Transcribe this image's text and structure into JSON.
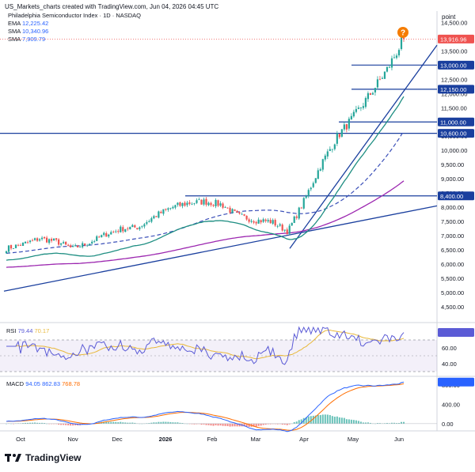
{
  "header": {
    "caption": "US_Markets_charts created with TradingView.com, Jun 04, 2026 04:45 UTC"
  },
  "logo": {
    "text": "TradingView"
  },
  "colors": {
    "ema": "#1e8e82",
    "sma_fast": "#3a4fb8",
    "sma_slow": "#9c27b0",
    "up": "#26a69a",
    "down": "#ef5350",
    "level": "#1a3f9e",
    "rsi": "#5b5bd6",
    "rsi_ma": "#e8b83a",
    "macd": "#2962ff",
    "signal": "#ff6d00"
  },
  "chart_data": [
    {
      "type": "candlestick",
      "title": "Philadelphia Semiconductor Index · 1D · NASDAQ",
      "price_axis_label": "point",
      "ylim": [
        4000,
        14900
      ],
      "y_ticks": [
        "14,500.00",
        "14,000.00",
        "13,500.00",
        "13,000.00",
        "12,500.00",
        "12,000.00",
        "11,500.00",
        "11,000.00",
        "10,500.00",
        "10,000.00",
        "9,500.00",
        "9,000.00",
        "8,500.00",
        "8,000.00",
        "7,500.00",
        "7,000.00",
        "6,500.00",
        "6,000.00",
        "5,500.00",
        "5,000.00",
        "4,500.00"
      ],
      "x_labels": [
        "Oct",
        "Nov",
        "Dec",
        "2026",
        "Feb",
        "Mar",
        "Apr",
        "May",
        "Jun"
      ],
      "legend": [
        {
          "name": "EMA",
          "value": "12,225.42"
        },
        {
          "name": "SMA",
          "value": "10,340.96"
        },
        {
          "name": "SMA",
          "value": "7,909.79"
        }
      ],
      "last_price": "13,916.96",
      "horizontal_levels": [
        {
          "label": "13,000.00",
          "value": 13000
        },
        {
          "label": "12,150.00",
          "value": 12150
        },
        {
          "label": "11,000.00",
          "value": 11000
        },
        {
          "label": "10,600.00",
          "value": 10600
        },
        {
          "label": "8,400.00",
          "value": 8400
        }
      ],
      "alert_marker": "?",
      "close_path": [
        [
          "Oct",
          6550
        ],
        [
          "Oct mid",
          6700
        ],
        [
          "Oct end",
          6900
        ],
        [
          "Nov",
          6800
        ],
        [
          "Nov mid",
          6550
        ],
        [
          "Nov end",
          6750
        ],
        [
          "Dec",
          7050
        ],
        [
          "Dec mid",
          7250
        ],
        [
          "Dec end",
          7300
        ],
        [
          "Jan",
          7700
        ],
        [
          "Jan mid",
          8000
        ],
        [
          "Jan end",
          8150
        ],
        [
          "Feb",
          8200
        ],
        [
          "Feb mid",
          8100
        ],
        [
          "Feb end",
          7700
        ],
        [
          "Mar",
          7550
        ],
        [
          "Mar mid",
          7500
        ],
        [
          "Mar end",
          7150
        ],
        [
          "Apr",
          8250
        ],
        [
          "Apr mid",
          9500
        ],
        [
          "Apr end",
          10500
        ],
        [
          "May",
          11200
        ],
        [
          "May mid",
          12000
        ],
        [
          "May end",
          12850
        ],
        [
          "Jun",
          13917
        ]
      ]
    },
    {
      "type": "line",
      "title": "RSI",
      "legend": [
        {
          "name": "RSI",
          "value": "79.44"
        },
        {
          "name": "RSI MA",
          "value": "70.17"
        }
      ],
      "ylim": [
        25,
        90
      ],
      "y_ticks": [
        "80.00",
        "60.00",
        "40.00"
      ],
      "band": [
        30,
        70
      ]
    },
    {
      "type": "line",
      "title": "MACD",
      "legend": [
        {
          "name": "MACD",
          "value": "94.05"
        },
        {
          "name": "MACD line",
          "value": "862.83"
        },
        {
          "name": "Signal",
          "value": "768.78"
        }
      ],
      "ylim": [
        -150,
        950
      ],
      "y_ticks": [
        "800.00",
        "400.00",
        "0.00"
      ]
    }
  ]
}
